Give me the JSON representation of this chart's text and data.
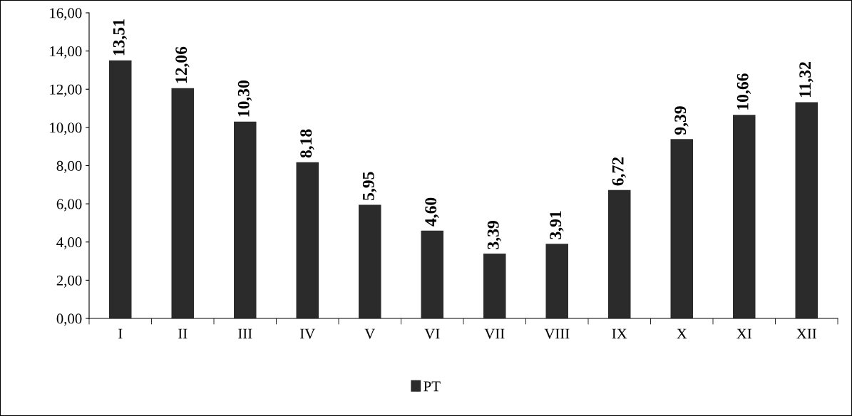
{
  "chart_data": {
    "type": "bar",
    "categories": [
      "I",
      "II",
      "III",
      "IV",
      "V",
      "VI",
      "VII",
      "VIII",
      "IX",
      "X",
      "XI",
      "XII"
    ],
    "series": [
      {
        "name": "PT",
        "color": "#2b2b2b",
        "values": [
          13.51,
          12.06,
          10.3,
          8.18,
          5.95,
          4.6,
          3.39,
          3.91,
          6.72,
          9.39,
          10.66,
          11.32
        ],
        "value_labels": [
          "13,51",
          "12,06",
          "10,30",
          "8,18",
          "5,95",
          "4,60",
          "3,39",
          "3,91",
          "6,72",
          "9,39",
          "10,66",
          "11,32"
        ]
      }
    ],
    "ylim": [
      0,
      16
    ],
    "yticks": [
      {
        "value": 0,
        "label": "0,00"
      },
      {
        "value": 2,
        "label": "2,00"
      },
      {
        "value": 4,
        "label": "4,00"
      },
      {
        "value": 6,
        "label": "6,00"
      },
      {
        "value": 8,
        "label": "8,00"
      },
      {
        "value": 10,
        "label": "10,00"
      },
      {
        "value": 12,
        "label": "12,00"
      },
      {
        "value": 14,
        "label": "14,00"
      },
      {
        "value": 16,
        "label": "16,00"
      }
    ],
    "grid": false,
    "legend": "bottom"
  }
}
